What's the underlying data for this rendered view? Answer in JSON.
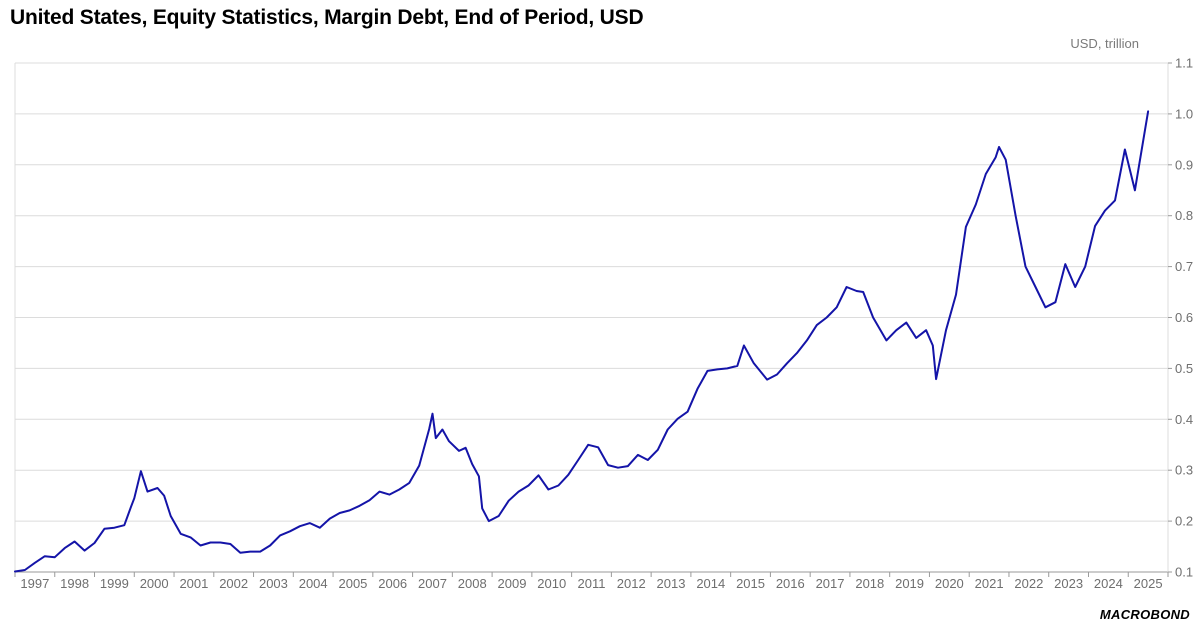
{
  "header": {
    "title": "United States, Equity Statistics, Margin Debt, End of Period, USD",
    "unit": "USD, trillion"
  },
  "branding": {
    "logo_text": "MACROBOND"
  },
  "colors": {
    "series": "#1414a8",
    "grid": "#dcdcdc",
    "axis": "#9a9a9a"
  },
  "chart_data": {
    "type": "line",
    "title": "United States, Equity Statistics, Margin Debt, End of Period, USD",
    "ylabel": "USD, trillion",
    "xlabel": "",
    "ylim": [
      0.1,
      1.1
    ],
    "y_ticks": [
      "0.1",
      "0.2",
      "0.3",
      "0.4",
      "0.5",
      "0.6",
      "0.7",
      "0.8",
      "0.9",
      "1.0",
      "1.1"
    ],
    "x_ticks": [
      "1997",
      "1998",
      "1999",
      "2000",
      "2001",
      "2002",
      "2003",
      "2004",
      "2005",
      "2006",
      "2007",
      "2008",
      "2009",
      "2010",
      "2011",
      "2012",
      "2013",
      "2014",
      "2015",
      "2016",
      "2017",
      "2018",
      "2019",
      "2020",
      "2021",
      "2022",
      "2023",
      "2024",
      "2025"
    ],
    "xlim": [
      "1997-01",
      "2025-12"
    ],
    "grid": true,
    "y_axis_side": "right",
    "series": [
      {
        "values": [
          [
            "1997-01",
            0.101
          ],
          [
            "1997-04",
            0.104
          ],
          [
            "1997-07",
            0.118
          ],
          [
            "1997-10",
            0.131
          ],
          [
            "1998-01",
            0.129
          ],
          [
            "1998-04",
            0.147
          ],
          [
            "1998-07",
            0.16
          ],
          [
            "1998-10",
            0.142
          ],
          [
            "1999-01",
            0.157
          ],
          [
            "1999-04",
            0.185
          ],
          [
            "1999-07",
            0.187
          ],
          [
            "1999-10",
            0.192
          ],
          [
            "1999-12",
            0.228
          ],
          [
            "2000-01",
            0.245
          ],
          [
            "2000-03",
            0.298
          ],
          [
            "2000-05",
            0.258
          ],
          [
            "2000-08",
            0.265
          ],
          [
            "2000-10",
            0.25
          ],
          [
            "2000-12",
            0.21
          ],
          [
            "2001-03",
            0.175
          ],
          [
            "2001-06",
            0.168
          ],
          [
            "2001-09",
            0.152
          ],
          [
            "2001-12",
            0.158
          ],
          [
            "2002-03",
            0.158
          ],
          [
            "2002-06",
            0.155
          ],
          [
            "2002-09",
            0.138
          ],
          [
            "2002-12",
            0.14
          ],
          [
            "2003-03",
            0.14
          ],
          [
            "2003-06",
            0.152
          ],
          [
            "2003-09",
            0.172
          ],
          [
            "2003-12",
            0.18
          ],
          [
            "2004-03",
            0.19
          ],
          [
            "2004-06",
            0.196
          ],
          [
            "2004-09",
            0.187
          ],
          [
            "2004-12",
            0.205
          ],
          [
            "2005-03",
            0.216
          ],
          [
            "2005-06",
            0.221
          ],
          [
            "2005-09",
            0.23
          ],
          [
            "2005-12",
            0.241
          ],
          [
            "2006-03",
            0.258
          ],
          [
            "2006-06",
            0.252
          ],
          [
            "2006-09",
            0.262
          ],
          [
            "2006-12",
            0.275
          ],
          [
            "2007-03",
            0.309
          ],
          [
            "2007-06",
            0.381
          ],
          [
            "2007-07",
            0.411
          ],
          [
            "2007-08",
            0.363
          ],
          [
            "2007-10",
            0.38
          ],
          [
            "2007-12",
            0.357
          ],
          [
            "2008-03",
            0.338
          ],
          [
            "2008-05",
            0.344
          ],
          [
            "2008-07",
            0.312
          ],
          [
            "2008-09",
            0.288
          ],
          [
            "2008-10",
            0.225
          ],
          [
            "2008-12",
            0.2
          ],
          [
            "2009-03",
            0.21
          ],
          [
            "2009-06",
            0.24
          ],
          [
            "2009-09",
            0.258
          ],
          [
            "2009-12",
            0.27
          ],
          [
            "2010-03",
            0.29
          ],
          [
            "2010-06",
            0.262
          ],
          [
            "2010-09",
            0.27
          ],
          [
            "2010-12",
            0.291
          ],
          [
            "2011-03",
            0.32
          ],
          [
            "2011-06",
            0.35
          ],
          [
            "2011-09",
            0.345
          ],
          [
            "2011-12",
            0.31
          ],
          [
            "2012-03",
            0.305
          ],
          [
            "2012-06",
            0.308
          ],
          [
            "2012-09",
            0.33
          ],
          [
            "2012-12",
            0.32
          ],
          [
            "2013-03",
            0.34
          ],
          [
            "2013-06",
            0.38
          ],
          [
            "2013-09",
            0.401
          ],
          [
            "2013-12",
            0.415
          ],
          [
            "2014-03",
            0.46
          ],
          [
            "2014-06",
            0.495
          ],
          [
            "2014-09",
            0.498
          ],
          [
            "2014-12",
            0.5
          ],
          [
            "2015-03",
            0.505
          ],
          [
            "2015-05",
            0.545
          ],
          [
            "2015-08",
            0.51
          ],
          [
            "2015-12",
            0.478
          ],
          [
            "2016-03",
            0.488
          ],
          [
            "2016-06",
            0.51
          ],
          [
            "2016-09",
            0.53
          ],
          [
            "2016-12",
            0.555
          ],
          [
            "2017-03",
            0.585
          ],
          [
            "2017-06",
            0.6
          ],
          [
            "2017-09",
            0.62
          ],
          [
            "2017-12",
            0.66
          ],
          [
            "2018-03",
            0.652
          ],
          [
            "2018-05",
            0.65
          ],
          [
            "2018-08",
            0.6
          ],
          [
            "2018-12",
            0.555
          ],
          [
            "2019-03",
            0.575
          ],
          [
            "2019-06",
            0.59
          ],
          [
            "2019-09",
            0.56
          ],
          [
            "2019-12",
            0.575
          ],
          [
            "2020-02",
            0.545
          ],
          [
            "2020-03",
            0.479
          ],
          [
            "2020-06",
            0.575
          ],
          [
            "2020-09",
            0.645
          ],
          [
            "2020-12",
            0.778
          ],
          [
            "2021-03",
            0.822
          ],
          [
            "2021-06",
            0.882
          ],
          [
            "2021-09",
            0.915
          ],
          [
            "2021-10",
            0.935
          ],
          [
            "2021-12",
            0.91
          ],
          [
            "2022-03",
            0.8
          ],
          [
            "2022-06",
            0.7
          ],
          [
            "2022-09",
            0.66
          ],
          [
            "2022-12",
            0.62
          ],
          [
            "2023-03",
            0.63
          ],
          [
            "2023-06",
            0.705
          ],
          [
            "2023-09",
            0.66
          ],
          [
            "2023-12",
            0.7
          ],
          [
            "2024-03",
            0.78
          ],
          [
            "2024-06",
            0.81
          ],
          [
            "2024-09",
            0.83
          ],
          [
            "2024-12",
            0.93
          ],
          [
            "2025-03",
            0.85
          ],
          [
            "2025-07",
            1.005
          ]
        ]
      }
    ]
  }
}
